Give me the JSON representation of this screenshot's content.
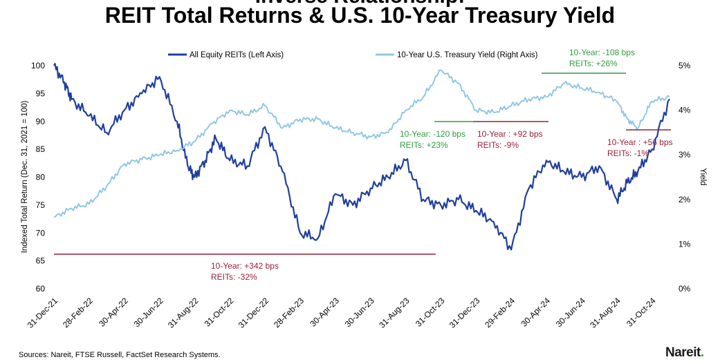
{
  "title_top": "Inverse Relationship:",
  "title": "REIT Total Returns & U.S. 10-Year Treasury Yield",
  "source": "Sources: Nareit, FTSE Russell, FactSet Research Systems.",
  "logo": {
    "text": "Nareit",
    "dot_color": "#2e9b3f"
  },
  "colors": {
    "reit": "#1f3f9e",
    "yield": "#92c7e3",
    "green": "#2e9b3f",
    "red": "#9b1e36"
  },
  "chart_data": {
    "type": "line",
    "ylabel": "Indexed Total Return (Dec. 31, 2021 = 100)",
    "y2label": "Yield",
    "ylim": [
      60,
      100
    ],
    "y2lim": [
      0,
      5
    ],
    "yticks": [
      "60",
      "65",
      "70",
      "75",
      "80",
      "85",
      "90",
      "95",
      "100"
    ],
    "y2ticks": [
      "0%",
      "1%",
      "2%",
      "3%",
      "4%",
      "5%"
    ],
    "xticks": [
      "31-Dec-21",
      "28-Feb-22",
      "30-Apr-22",
      "30-Jun-22",
      "31-Aug-22",
      "31-Oct-22",
      "31-Dec-22",
      "28-Feb-23",
      "30-Apr-23",
      "30-Jun-23",
      "31-Aug-23",
      "31-Oct-23",
      "31-Dec-23",
      "29-Feb-24",
      "30-Apr-24",
      "30-Jun-24",
      "31-Aug-24",
      "31-Oct-24"
    ],
    "legend": [
      "All Equity REITs (Left Axis)",
      "10-Year U.S. Treasury Yield (Right Axis)"
    ],
    "series": [
      {
        "name": "All Equity REITs (Left Axis)",
        "axis": "left",
        "x": [
          0,
          0.3,
          0.5,
          1,
          1.5,
          2,
          2.5,
          3,
          3.5,
          3.8,
          4,
          4.3,
          4.6,
          5,
          5.5,
          6,
          6.5,
          7,
          7.5,
          8,
          8.5,
          9,
          9.5,
          10,
          10.5,
          11,
          11.5,
          12,
          12.5,
          13,
          13.5,
          14,
          14.5,
          15,
          15.5,
          16,
          16.3,
          16.6,
          17,
          17.5
        ],
        "values": [
          100,
          97,
          94,
          91,
          88,
          92,
          95,
          98,
          90,
          82,
          80,
          83,
          87,
          83,
          82,
          89,
          81,
          70,
          69,
          77,
          75,
          78,
          80,
          83,
          76,
          75,
          76,
          74,
          72,
          67,
          78,
          83,
          81,
          80,
          82,
          76,
          79,
          81,
          85,
          94
        ]
      },
      {
        "name": "10-Year U.S. Treasury Yield (Right Axis)",
        "axis": "right",
        "x": [
          0,
          0.5,
          1,
          1.5,
          2,
          2.5,
          3,
          3.5,
          4,
          4.5,
          5,
          5.5,
          6,
          6.5,
          7,
          7.5,
          8,
          8.5,
          9,
          9.5,
          10,
          10.5,
          11,
          11.5,
          12,
          12.5,
          13,
          13.5,
          14,
          14.5,
          15,
          15.5,
          16,
          16.3,
          16.6,
          17,
          17.5
        ],
        "values": [
          1.6,
          1.8,
          1.9,
          2.3,
          2.8,
          2.9,
          3.0,
          3.1,
          3.3,
          3.7,
          4.0,
          3.9,
          4.1,
          3.6,
          3.8,
          3.8,
          3.6,
          3.5,
          3.4,
          3.5,
          4.0,
          4.3,
          4.9,
          4.6,
          4.0,
          3.95,
          4.1,
          4.25,
          4.3,
          4.6,
          4.5,
          4.4,
          4.2,
          3.8,
          3.6,
          4.2,
          4.3
        ]
      }
    ],
    "annotations": [
      {
        "text1": "10-Year: +342 bps",
        "text2": "REITs: -32%",
        "color": "red"
      },
      {
        "text1": "10-Year: -120 bps",
        "text2": "REITs: +23%",
        "color": "green"
      },
      {
        "text1": "10-Year : +92 bps",
        "text2": "REITs: -9%",
        "color": "red"
      },
      {
        "text1": "10-Year: -108 bps",
        "text2": "REITs: +26%",
        "color": "green"
      },
      {
        "text1": "10-Year : +56 bps",
        "text2": "REITs: -1%",
        "color": "red"
      }
    ]
  }
}
